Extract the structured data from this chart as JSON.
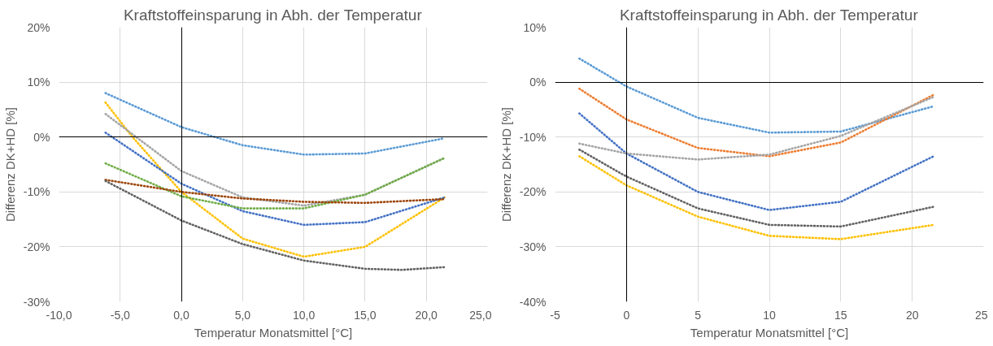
{
  "chart_data": [
    {
      "type": "line",
      "title": "Kraftstoffeinsparung in Abh. der Temperatur",
      "xlabel": "Temperatur Monatsmittel [°C]",
      "ylabel": "Differenz DK+HD [%]",
      "xlim": [
        -10,
        25
      ],
      "ylim": [
        -30,
        20
      ],
      "xticks": [
        {
          "value": -10,
          "label": "-10,0"
        },
        {
          "value": -5,
          "label": "-5,0"
        },
        {
          "value": 0,
          "label": "0,0"
        },
        {
          "value": 5,
          "label": "5,0"
        },
        {
          "value": 10,
          "label": "10,0"
        },
        {
          "value": 15,
          "label": "15,0"
        },
        {
          "value": 20,
          "label": "20,0"
        },
        {
          "value": 25,
          "label": "25,0"
        }
      ],
      "yticks": [
        {
          "value": -30,
          "label": "-30%"
        },
        {
          "value": -20,
          "label": "-20%"
        },
        {
          "value": -10,
          "label": "-10%"
        },
        {
          "value": 0,
          "label": "0%"
        },
        {
          "value": 10,
          "label": "10%"
        },
        {
          "value": 20,
          "label": "20%"
        }
      ],
      "grid": true,
      "marker": "none",
      "line_style": "dotted",
      "series": [
        {
          "color": "#5b9bd5",
          "x": [
            -6.2,
            0,
            5,
            10,
            15,
            21.3
          ],
          "values": [
            8,
            1.8,
            -1.5,
            -3.2,
            -3,
            -0.3
          ]
        },
        {
          "color": "#ffc000",
          "x": [
            -6.2,
            -4,
            0,
            5,
            10,
            15,
            21.5
          ],
          "values": [
            6.3,
            0,
            -10,
            -18.5,
            -21.8,
            -20,
            -11
          ]
        },
        {
          "color": "#a5a5a5",
          "x": [
            -6.2,
            0,
            5,
            10,
            15,
            21.5
          ],
          "values": [
            4.2,
            -6.2,
            -11,
            -12.5,
            -10.5,
            -3.8
          ]
        },
        {
          "color": "#4472c4",
          "x": [
            -6.2,
            0,
            5,
            10,
            15,
            21.5
          ],
          "values": [
            0.8,
            -8.5,
            -13.5,
            -16,
            -15.5,
            -11
          ]
        },
        {
          "color": "#70ad47",
          "x": [
            -6.2,
            0,
            5,
            10,
            15,
            21.5
          ],
          "values": [
            -4.8,
            -10.8,
            -13,
            -13,
            -10.5,
            -3.8
          ]
        },
        {
          "color": "#9e480e",
          "x": [
            -6.2,
            0,
            5,
            10,
            15,
            21.5
          ],
          "values": [
            -7.8,
            -10,
            -11.2,
            -11.8,
            -12,
            -11.3
          ]
        },
        {
          "color": "#636363",
          "x": [
            -6.2,
            0,
            5,
            10,
            15,
            18,
            21.5
          ],
          "values": [
            -8,
            -15.2,
            -19.5,
            -22.5,
            -24,
            -24.2,
            -23.7
          ]
        }
      ]
    },
    {
      "type": "line",
      "title": "Kraftstoffeinsparung in Abh. der Temperatur",
      "xlabel": "Temperatur Monatsmittel [°C]",
      "ylabel": "Differenz DK+HD [%]",
      "xlim": [
        -5,
        25
      ],
      "ylim": [
        -40,
        10
      ],
      "xticks": [
        -5,
        0,
        5,
        10,
        15,
        20,
        25
      ],
      "yticks": [
        {
          "value": -40,
          "label": "-40%"
        },
        {
          "value": -30,
          "label": "-30%"
        },
        {
          "value": -20,
          "label": "-20%"
        },
        {
          "value": -10,
          "label": "-10%"
        },
        {
          "value": 0,
          "label": "0%"
        },
        {
          "value": 10,
          "label": "10%"
        }
      ],
      "grid": true,
      "marker": "none",
      "line_style": "dotted",
      "series": [
        {
          "color": "#5b9bd5",
          "x": [
            -3.3,
            0,
            5,
            10,
            15,
            21.5
          ],
          "values": [
            4.3,
            -0.8,
            -6.5,
            -9.2,
            -9,
            -4.4
          ]
        },
        {
          "color": "#ed7d31",
          "x": [
            -3.3,
            0,
            5,
            10,
            15,
            21.5
          ],
          "values": [
            -1.2,
            -6.8,
            -12,
            -13.5,
            -11,
            -2.3
          ]
        },
        {
          "color": "#4472c4",
          "x": [
            -3.3,
            0,
            5,
            10,
            15,
            21.5
          ],
          "values": [
            -5.7,
            -13,
            -20,
            -23.3,
            -21.8,
            -13.5
          ]
        },
        {
          "color": "#a5a5a5",
          "x": [
            -3.3,
            0,
            5,
            10,
            15,
            21.5
          ],
          "values": [
            -11.2,
            -13,
            -14.1,
            -13.2,
            -9.8,
            -2.7
          ]
        },
        {
          "color": "#636363",
          "x": [
            -3.3,
            0,
            5,
            10,
            15,
            21.5
          ],
          "values": [
            -12.3,
            -17.2,
            -23,
            -26,
            -26.3,
            -22.7
          ]
        },
        {
          "color": "#ffc000",
          "x": [
            -3.3,
            0,
            5,
            10,
            15,
            21.5
          ],
          "values": [
            -13.5,
            -18.8,
            -24.5,
            -28,
            -28.6,
            -26
          ]
        }
      ]
    }
  ]
}
